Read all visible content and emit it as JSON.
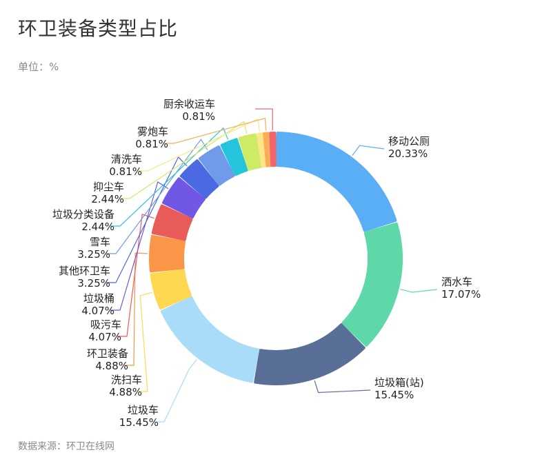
{
  "title": "环卫装备类型占比",
  "unit": "单位：%",
  "source": "数据来源：环卫在线网",
  "chart_data": {
    "type": "pie",
    "variant": "donut",
    "title": "环卫装备类型占比",
    "unit": "%",
    "series": [
      {
        "name": "移动公厕",
        "value": 20.33,
        "label": "20.33%",
        "color": "#5aaef5"
      },
      {
        "name": "洒水车",
        "value": 17.07,
        "label": "17.07%",
        "color": "#5fd8a9"
      },
      {
        "name": "垃圾箱(站)",
        "value": 15.45,
        "label": "15.45%",
        "color": "#5a6f98"
      },
      {
        "name": "垃圾车",
        "value": 15.45,
        "label": "15.45%",
        "color": "#a9dcf8"
      },
      {
        "name": "洗扫车",
        "value": 4.88,
        "label": "4.88%",
        "color": "#fdd850"
      },
      {
        "name": "环卫装备",
        "value": 4.88,
        "label": "4.88%",
        "color": "#fb9548"
      },
      {
        "name": "吸污车",
        "value": 4.07,
        "label": "4.07%",
        "color": "#e95b59"
      },
      {
        "name": "垃圾桶",
        "value": 4.07,
        "label": "4.07%",
        "color": "#7057e4"
      },
      {
        "name": "其他环卫车",
        "value": 3.25,
        "label": "3.25%",
        "color": "#4b69e2"
      },
      {
        "name": "雪车",
        "value": 3.25,
        "label": "3.25%",
        "color": "#6f9be8"
      },
      {
        "name": "垃圾分类设备",
        "value": 2.44,
        "label": "2.44%",
        "color": "#24c4dd"
      },
      {
        "name": "抑尘车",
        "value": 2.44,
        "label": "2.44%",
        "color": "#cdeb64"
      },
      {
        "name": "清洗车",
        "value": 0.81,
        "label": "0.81%",
        "color": "#fde58a"
      },
      {
        "name": "雾炮车",
        "value": 0.81,
        "label": "0.81%",
        "color": "#f9ad5a"
      },
      {
        "name": "厨余收运车",
        "value": 0.81,
        "label": "0.81%",
        "color": "#f2656b"
      }
    ],
    "legend": "none"
  }
}
